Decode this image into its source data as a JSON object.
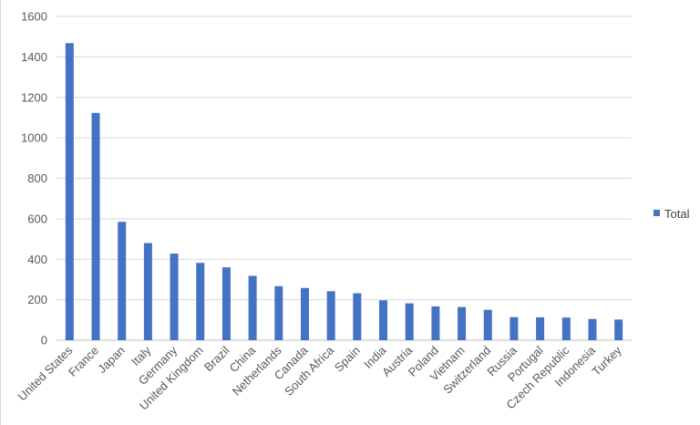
{
  "chart_data": {
    "type": "bar",
    "categories": [
      "United States",
      "France",
      "Japan",
      "Italy",
      "Germany",
      "United Kingdom",
      "Brazil",
      "China",
      "Netherlands",
      "Canada",
      "South Africa",
      "Spain",
      "India",
      "Austria",
      "Poland",
      "Vietnam",
      "Switzerland",
      "Russia",
      "Portugal",
      "Czech Republic",
      "Indonesia",
      "Turkey"
    ],
    "series": [
      {
        "name": "Total",
        "values": [
          1468,
          1123,
          585,
          480,
          428,
          382,
          360,
          318,
          267,
          258,
          242,
          232,
          197,
          182,
          167,
          164,
          150,
          114,
          113,
          112,
          105,
          102
        ],
        "color": "#4472C4"
      }
    ],
    "ylim": [
      0,
      1600
    ],
    "yticks": [
      "0",
      "200",
      "400",
      "600",
      "800",
      "1000",
      "1200",
      "1400",
      "1600"
    ],
    "grid": true,
    "legend": "right",
    "colors": {
      "bar": "#4472C4",
      "grid": "#d9d9d9",
      "text": "#595959"
    }
  }
}
